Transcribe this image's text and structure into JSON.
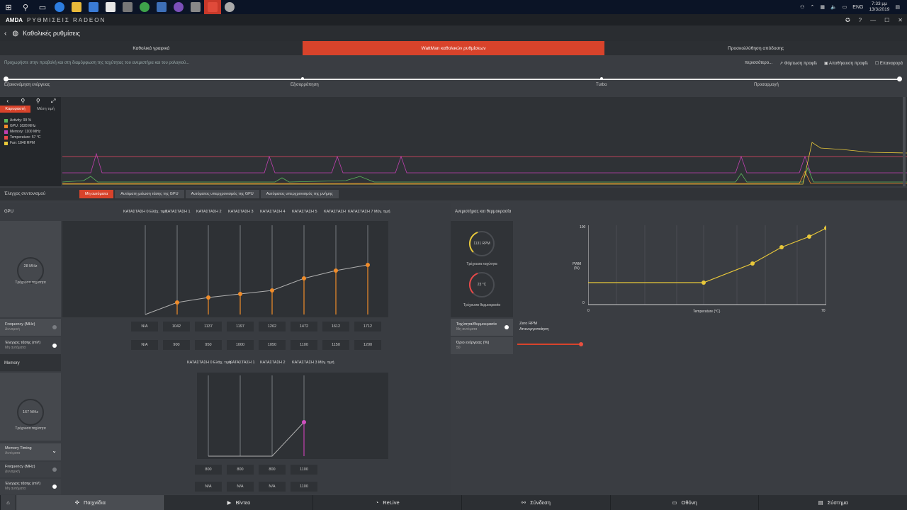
{
  "taskbar": {
    "tray": {
      "language": "ENG",
      "time": "7:33 μμ",
      "date": "13/3/2019"
    }
  },
  "app": {
    "brand": "AMDA",
    "title": "ΡΥΘΜΙΣΕΙΣ RADEON",
    "section_title": "Καθολικές ρυθμίσεις"
  },
  "tabs": [
    {
      "label": "Καθολικά γραφικά",
      "active": false
    },
    {
      "label": "WattMan καθολικών ρυθμίσεων",
      "active": true
    },
    {
      "label": "Προσκολλύθηση απόδοσης",
      "active": false
    }
  ],
  "infobar": {
    "text": "Προχωρήστε στην προβολή και στη διαμόρφωση της ταχύτητας του ανεμιστήρα και του ρολογιού...",
    "more": "περισσότερο...",
    "load_profile": "Φόρτωση προφίλ",
    "save_profile": "Αποθήκευση προφίλ",
    "reset": "Επαναφορά"
  },
  "presets": [
    "Εξοικονόμηση ενέργειας",
    "Εξισορρόπηση",
    "Turbo",
    "Προσαρμογή"
  ],
  "monitor": {
    "mode_current": "Καρυφαστή",
    "mode_avg": "Μέση τιμή",
    "legend": [
      {
        "label": "Activity: 99 %",
        "color": "#5cb85c"
      },
      {
        "label": "GPU: 1628 MHz",
        "color": "#f08c2a"
      },
      {
        "label": "Memory: 1100 MHz",
        "color": "#c040b0"
      },
      {
        "label": "Temperature: 57 °C",
        "color": "#e84848"
      },
      {
        "label": "Fan: 1848 RPM",
        "color": "#e8c83a"
      }
    ]
  },
  "control": {
    "label": "Έλεγχος συντονισμού",
    "buttons": [
      {
        "label": "Μη αυτόματα",
        "active": true
      },
      {
        "label": "Αυτόματη μείωση τάσης της GPU",
        "active": false
      },
      {
        "label": "Αυτόματος υπερχρονισμός της GPU",
        "active": false
      },
      {
        "label": "Αυτόματος υπερχρονισμός της μνήμης",
        "active": false
      }
    ]
  },
  "gpu": {
    "heading": "GPU",
    "gauge_value": "28 MHz",
    "gauge_caption": "Τρέχουσα ταχύτητα",
    "states": [
      "ΚΑΤΑΣΤΑΣΗ 0 Ελάχ. τιμή",
      "ΚΑΤΑΣΤΑΣΗ 1",
      "ΚΑΤΑΣΤΑΣΗ 2",
      "ΚΑΤΑΣΤΑΣΗ 3",
      "ΚΑΤΑΣΤΑΣΗ 4",
      "ΚΑΤΑΣΤΑΣΗ 5",
      "ΚΑΤΑΣΤΑΣΗ 6",
      "ΚΑΤΑΣΤΑΣΗ 7 Μέγ. τιμή"
    ],
    "frequency_label": "Frequency (MHz)",
    "frequency_sub": "Δυναμική",
    "frequency": [
      "N/A",
      "1042",
      "1137",
      "1197",
      "1262",
      "1472",
      "1612",
      "1712"
    ],
    "voltage_label": "Έλεγχος τάσης (mV)",
    "voltage_sub": "Μη αυτόματα",
    "voltage": [
      "N/A",
      "900",
      "950",
      "1000",
      "1050",
      "1100",
      "1150",
      "1200"
    ]
  },
  "memory": {
    "heading": "Memory",
    "gauge_value": "167 MHz",
    "gauge_caption": "Τρέχουσα ταχύτητα",
    "states": [
      "ΚΑΤΑΣΤΑΣΗ 0 Ελάχ. τιμή",
      "ΚΑΤΑΣΤΑΣΗ 1",
      "ΚΑΤΑΣΤΑΣΗ 2",
      "ΚΑΤΑΣΤΑΣΗ 3 Μέγ. τιμή"
    ],
    "timing_label": "Memory Timing",
    "timing_sub": "Αυτόματα",
    "frequency_label": "Frequency (MHz)",
    "frequency_sub": "Δυναμική",
    "frequency": [
      "800",
      "800",
      "800",
      "1100"
    ],
    "voltage_label": "Έλεγχος τάσης (mV)",
    "voltage_sub": "Μη αυτόματα",
    "voltage": [
      "N/A",
      "N/A",
      "N/A",
      "1100"
    ]
  },
  "fan": {
    "heading": "Ανεμιστήρας και θερμοκρασία",
    "rpm_value": "1131 RPM",
    "rpm_caption": "Τρέχουσα ταχύτητα",
    "temp_value": "23 °C",
    "temp_caption": "Τρέχουσα θερμοκρασία",
    "speed_temp_label": "Ταχύτητα/Θερμοκρασία",
    "speed_temp_sub": "Μη αυτόματα",
    "power_limit_label": "Όριο ενέργειας (%)",
    "power_limit_value": "50",
    "zero_rpm_label": "Zero RPM",
    "zero_rpm_sub": "Απενεργοποίηση",
    "power_limit_fraction": 0.5,
    "chart_y_max": "100",
    "chart_y_min": "0",
    "chart_x_min": "0",
    "chart_x_max": "70",
    "chart_y_label_1": "PWM",
    "chart_y_label_2": "(%)",
    "chart_x_label": "Temperature (°C)"
  },
  "bottomnav": [
    {
      "label": "Παιχνίδια",
      "icon": "gamepad-icon",
      "active": true
    },
    {
      "label": "Βίντεο",
      "icon": "play-icon",
      "active": false
    },
    {
      "label": "ReLive",
      "icon": "relive-icon",
      "active": false
    },
    {
      "label": "Σύνδεση",
      "icon": "connect-icon",
      "active": false
    },
    {
      "label": "Οθόνη",
      "icon": "monitor-icon",
      "active": false
    },
    {
      "label": "Σύστημα",
      "icon": "system-icon",
      "active": false
    }
  ]
}
